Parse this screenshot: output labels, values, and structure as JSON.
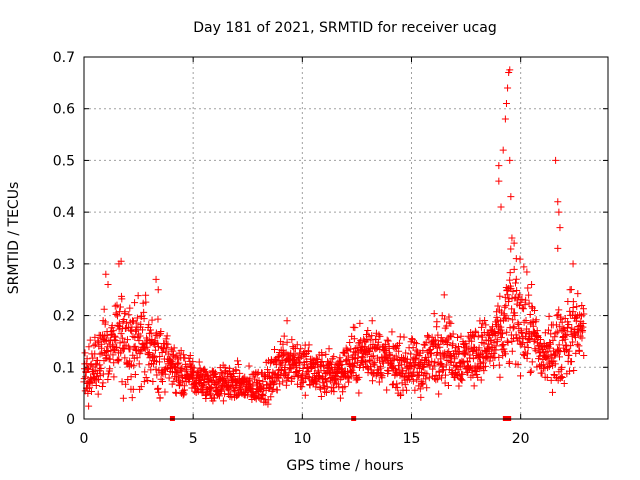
{
  "chart_data": {
    "type": "scatter",
    "title": "Day 181 of 2021, SRMTID for receiver ucag",
    "xlabel": "GPS time / hours",
    "ylabel": "SRMTID / TECUs",
    "xlim": [
      0,
      24
    ],
    "ylim": [
      0,
      0.7
    ],
    "xticks": [
      "0",
      "5",
      "10",
      "15",
      "20"
    ],
    "xtick_values": [
      0,
      5,
      10,
      15,
      20
    ],
    "yticks": [
      "0",
      "0.1",
      "0.2",
      "0.3",
      "0.4",
      "0.5",
      "0.6",
      "0.7"
    ],
    "ytick_values": [
      0,
      0.1,
      0.2,
      0.3,
      0.4,
      0.5,
      0.6,
      0.7
    ],
    "grid": true,
    "marker": "plus",
    "color": "#ff0000",
    "series": [
      {
        "name": "SRMTID",
        "profile_x": [
          0.0,
          0.5,
          1.0,
          1.5,
          2.0,
          2.5,
          3.0,
          3.5,
          4.0,
          4.5,
          5.0,
          5.5,
          6.0,
          6.5,
          7.0,
          7.5,
          8.0,
          8.5,
          9.0,
          9.5,
          10.0,
          10.5,
          11.0,
          11.5,
          12.0,
          12.5,
          13.0,
          13.5,
          14.0,
          14.5,
          15.0,
          15.5,
          16.0,
          16.5,
          17.0,
          17.5,
          18.0,
          18.5,
          19.0,
          19.5,
          20.0,
          20.5,
          21.0,
          21.5,
          22.0,
          22.5,
          22.9
        ],
        "profile_mean": [
          0.08,
          0.1,
          0.14,
          0.15,
          0.14,
          0.15,
          0.13,
          0.12,
          0.1,
          0.09,
          0.08,
          0.07,
          0.065,
          0.07,
          0.07,
          0.06,
          0.065,
          0.07,
          0.11,
          0.12,
          0.1,
          0.09,
          0.085,
          0.09,
          0.1,
          0.12,
          0.13,
          0.12,
          0.11,
          0.1,
          0.1,
          0.1,
          0.13,
          0.14,
          0.12,
          0.12,
          0.13,
          0.14,
          0.15,
          0.2,
          0.2,
          0.16,
          0.12,
          0.13,
          0.15,
          0.18,
          0.17
        ],
        "profile_spread": [
          0.05,
          0.05,
          0.06,
          0.07,
          0.07,
          0.08,
          0.07,
          0.06,
          0.04,
          0.04,
          0.035,
          0.03,
          0.03,
          0.03,
          0.03,
          0.03,
          0.03,
          0.035,
          0.045,
          0.05,
          0.045,
          0.04,
          0.04,
          0.04,
          0.045,
          0.05,
          0.05,
          0.05,
          0.045,
          0.045,
          0.045,
          0.05,
          0.06,
          0.06,
          0.05,
          0.05,
          0.05,
          0.05,
          0.06,
          0.09,
          0.09,
          0.07,
          0.05,
          0.06,
          0.07,
          0.07,
          0.05
        ],
        "peaks": [
          {
            "x": 1.0,
            "y": 0.28
          },
          {
            "x": 1.1,
            "y": 0.26
          },
          {
            "x": 1.6,
            "y": 0.3
          },
          {
            "x": 1.7,
            "y": 0.305
          },
          {
            "x": 3.3,
            "y": 0.27
          },
          {
            "x": 3.4,
            "y": 0.25
          },
          {
            "x": 9.3,
            "y": 0.19
          },
          {
            "x": 13.2,
            "y": 0.19
          },
          {
            "x": 16.5,
            "y": 0.24
          },
          {
            "x": 19.0,
            "y": 0.46
          },
          {
            "x": 19.0,
            "y": 0.49
          },
          {
            "x": 19.1,
            "y": 0.41
          },
          {
            "x": 19.2,
            "y": 0.52
          },
          {
            "x": 19.3,
            "y": 0.58
          },
          {
            "x": 19.35,
            "y": 0.61
          },
          {
            "x": 19.4,
            "y": 0.64
          },
          {
            "x": 19.45,
            "y": 0.67
          },
          {
            "x": 19.5,
            "y": 0.675
          },
          {
            "x": 19.5,
            "y": 0.5
          },
          {
            "x": 19.55,
            "y": 0.43
          },
          {
            "x": 19.6,
            "y": 0.35
          },
          {
            "x": 19.7,
            "y": 0.34
          },
          {
            "x": 19.8,
            "y": 0.31
          },
          {
            "x": 20.5,
            "y": 0.26
          },
          {
            "x": 21.6,
            "y": 0.5
          },
          {
            "x": 21.7,
            "y": 0.42
          },
          {
            "x": 21.75,
            "y": 0.4
          },
          {
            "x": 21.8,
            "y": 0.37
          },
          {
            "x": 21.7,
            "y": 0.33
          },
          {
            "x": 22.4,
            "y": 0.3
          }
        ]
      }
    ],
    "ground_markers": [
      {
        "x": 4.05,
        "y": 0.0
      },
      {
        "x": 12.35,
        "y": 0.0
      },
      {
        "x": 19.3,
        "y": 0.0
      },
      {
        "x": 19.45,
        "y": 0.0
      }
    ]
  }
}
